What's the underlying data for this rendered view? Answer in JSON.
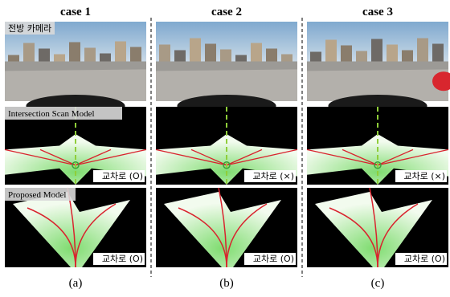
{
  "columns": [
    {
      "title": "case 1",
      "caption": "(a)",
      "scan_tag": "교차로 (O)",
      "proposed_tag": "교차로 (O)"
    },
    {
      "title": "case 2",
      "caption": "(b)",
      "scan_tag": "교차로 (×)",
      "proposed_tag": "교차로 (O)"
    },
    {
      "title": "case 3",
      "caption": "(c)",
      "scan_tag": "교차로 (×)",
      "proposed_tag": "교차로 (O)"
    }
  ],
  "rows": {
    "camera": "전방 카메라",
    "scan": "Intersection Scan Model",
    "proposed": "Proposed Model"
  }
}
